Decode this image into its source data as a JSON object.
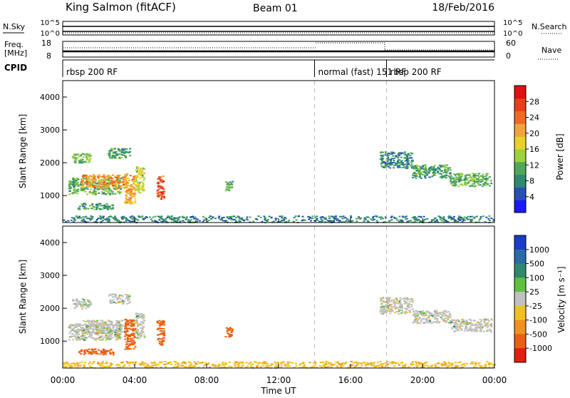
{
  "header": {
    "station": "King Salmon (fitACF)",
    "beam": "Beam 01",
    "date": "18/Feb/2016"
  },
  "status_panels": {
    "nsky": {
      "label": "N.Sky",
      "ticks_left": [
        "10^5",
        "10^0"
      ],
      "ticks_right": [
        "10^5",
        "10^0"
      ],
      "right_label": "N.Search"
    },
    "freq": {
      "label_lines": [
        "Freq.",
        "[MHz]"
      ],
      "ticks_left": [
        "18",
        "8"
      ],
      "ticks_right": [
        "60",
        "0"
      ],
      "right_label": "Nave"
    },
    "cpid": {
      "label": "CPID",
      "segments": [
        {
          "name": "rbsp 200 RF",
          "start": 0,
          "end": 14
        },
        {
          "name": "normal (fast) 151 RF",
          "start": 14,
          "end": 18
        },
        {
          "name": "rbsp 200 RF",
          "start": 18,
          "end": 24
        }
      ]
    }
  },
  "x_axis": {
    "label": "Time UT",
    "ticks": [
      "00:00",
      "04:00",
      "08:00",
      "12:00",
      "16:00",
      "20:00",
      "00:00"
    ],
    "tick_hours": [
      0,
      4,
      8,
      12,
      16,
      20,
      24
    ]
  },
  "colorbars": {
    "power": {
      "label": "Power [dB]",
      "ticks": [
        "28",
        "24",
        "20",
        "16",
        "12",
        "8",
        "4"
      ],
      "colors": [
        "#1a1aff",
        "#2850b4",
        "#2e8a6e",
        "#4fa85a",
        "#9ed23c",
        "#e8d22a",
        "#f2a43a",
        "#ef6a20",
        "#e8401a",
        "#e01010"
      ]
    },
    "velocity": {
      "label": "Velocity [m s⁻¹]",
      "ticks": [
        "1000",
        "500",
        "100",
        "25",
        "-25",
        "-100",
        "-500",
        "-1000"
      ],
      "colors": [
        "#1a3cc8",
        "#2a6aa8",
        "#2e8a6e",
        "#60c040",
        "#c0c0c0",
        "#f0c020",
        "#f09020",
        "#e86010",
        "#e02010"
      ]
    }
  },
  "chart_data": [
    {
      "type": "heatmap",
      "panel": "power",
      "title": "King Salmon (fitACF)",
      "xlabel": "Time UT",
      "ylabel": "Slant Range [km]",
      "xlim": [
        0,
        24
      ],
      "ylim": [
        180,
        4500
      ],
      "y_ticks": [
        1000,
        2000,
        3000,
        4000
      ],
      "grid": false,
      "colorbar": "Power [dB]",
      "colorbar_ticks": [
        4,
        8,
        12,
        16,
        20,
        24,
        28
      ],
      "markers_hours": [
        14,
        18
      ],
      "blobs": [
        {
          "x": [
            0.3,
            3.2
          ],
          "y": [
            1050,
            1550
          ],
          "value": 12
        },
        {
          "x": [
            1.0,
            3.5
          ],
          "y": [
            1250,
            1650
          ],
          "value": 22
        },
        {
          "x": [
            0.5,
            1.5
          ],
          "y": [
            2000,
            2300
          ],
          "value": 12
        },
        {
          "x": [
            2.5,
            3.7
          ],
          "y": [
            2150,
            2450
          ],
          "value": 10
        },
        {
          "x": [
            0.8,
            2.8
          ],
          "y": [
            600,
            780
          ],
          "value": 10
        },
        {
          "x": [
            3.4,
            4.0
          ],
          "y": [
            760,
            1700
          ],
          "value": 20
        },
        {
          "x": [
            4.0,
            4.5
          ],
          "y": [
            1100,
            1900
          ],
          "value": 16
        },
        {
          "x": [
            5.2,
            5.6
          ],
          "y": [
            900,
            1650
          ],
          "value": 26
        },
        {
          "x": [
            9.0,
            9.4
          ],
          "y": [
            1150,
            1450
          ],
          "value": 12
        },
        {
          "x": [
            17.6,
            19.4
          ],
          "y": [
            1850,
            2350
          ],
          "value": 8
        },
        {
          "x": [
            19.4,
            21.5
          ],
          "y": [
            1550,
            1950
          ],
          "value": 10
        },
        {
          "x": [
            21.5,
            23.8
          ],
          "y": [
            1300,
            1700
          ],
          "value": 12
        },
        {
          "x": [
            0.0,
            24.0
          ],
          "y": [
            200,
            400
          ],
          "value": 8
        }
      ]
    },
    {
      "type": "heatmap",
      "panel": "velocity",
      "xlabel": "Time UT",
      "ylabel": "Slant Range [km]",
      "xlim": [
        0,
        24
      ],
      "ylim": [
        180,
        4500
      ],
      "y_ticks": [
        1000,
        2000,
        3000,
        4000
      ],
      "grid": false,
      "colorbar": "Velocity [m s⁻¹]",
      "colorbar_ticks": [
        1000,
        500,
        100,
        25,
        -25,
        -100,
        -500,
        -1000
      ],
      "markers_hours": [
        14,
        18
      ],
      "blobs": [
        {
          "x": [
            0.3,
            3.2
          ],
          "y": [
            1050,
            1550
          ],
          "value": 0
        },
        {
          "x": [
            1.0,
            3.5
          ],
          "y": [
            1250,
            1650
          ],
          "value": 0
        },
        {
          "x": [
            0.5,
            1.5
          ],
          "y": [
            2000,
            2300
          ],
          "value": 0
        },
        {
          "x": [
            2.5,
            3.7
          ],
          "y": [
            2150,
            2450
          ],
          "value": 0
        },
        {
          "x": [
            0.8,
            2.8
          ],
          "y": [
            600,
            780
          ],
          "value": -300
        },
        {
          "x": [
            3.4,
            4.0
          ],
          "y": [
            760,
            1700
          ],
          "value": -300
        },
        {
          "x": [
            4.0,
            4.5
          ],
          "y": [
            1100,
            1900
          ],
          "value": 0
        },
        {
          "x": [
            5.2,
            5.6
          ],
          "y": [
            900,
            1650
          ],
          "value": -300
        },
        {
          "x": [
            9.0,
            9.4
          ],
          "y": [
            1150,
            1450
          ],
          "value": -300
        },
        {
          "x": [
            17.6,
            19.4
          ],
          "y": [
            1850,
            2350
          ],
          "value": 0
        },
        {
          "x": [
            19.4,
            21.5
          ],
          "y": [
            1550,
            1950
          ],
          "value": 0
        },
        {
          "x": [
            21.5,
            23.8
          ],
          "y": [
            1300,
            1700
          ],
          "value": 0
        },
        {
          "x": [
            0.0,
            24.0
          ],
          "y": [
            200,
            400
          ],
          "value": -60
        }
      ]
    }
  ]
}
